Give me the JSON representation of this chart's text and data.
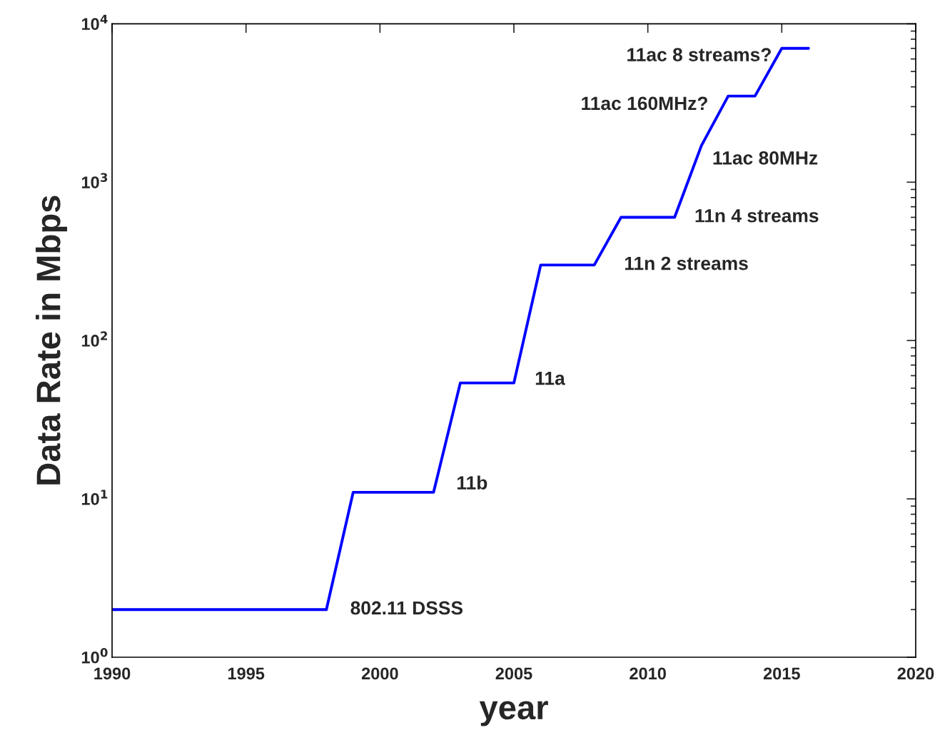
{
  "chart_data": {
    "type": "line",
    "xlabel": "year",
    "ylabel": "Data Rate in Mbps",
    "log": "y",
    "grid": false,
    "marker": "none",
    "line_style": "solid",
    "x": [
      1990,
      1998,
      1999,
      2002,
      2003,
      2005,
      2006,
      2008,
      2009,
      2011,
      2012,
      2013,
      2014,
      2015,
      2016
    ],
    "series": [
      {
        "color": "#0000ff",
        "values": [
          2,
          2,
          11,
          11,
          54,
          54,
          300,
          300,
          600,
          600,
          1700,
          3500,
          3500,
          7000,
          7000
        ]
      }
    ],
    "xlim": [
      1990,
      2020
    ],
    "xticks": [
      1990,
      1995,
      2000,
      2005,
      2010,
      2015,
      2020
    ],
    "ylim": [
      1,
      10000
    ],
    "yticks": [
      {
        "value": 1,
        "label": "10$^{0}$"
      },
      {
        "value": 10,
        "label": "10$^{1}$"
      },
      {
        "value": 100,
        "label": "10$^{2}$"
      },
      {
        "value": 1000,
        "label": "10$^{3}$"
      },
      {
        "value": 10000,
        "label": "10$^{4}$"
      }
    ],
    "annotations": [
      {
        "text": "802.11 DSSS",
        "x": 1998,
        "y": 2
      },
      {
        "text": "11b",
        "x": 2002,
        "y": 11
      },
      {
        "text": "11a",
        "x": 2005,
        "y": 54
      },
      {
        "text": "11n 2 streams",
        "x": 2008,
        "y": 300
      },
      {
        "text": "11n 4 streams",
        "x": 2011,
        "y": 600
      },
      {
        "text": "11ac 80MHz",
        "x": 2012,
        "y": 1700
      },
      {
        "text": "11ac 160MHz?",
        "x": 2013,
        "y": 3500
      },
      {
        "text": "11ac 8 streams?",
        "x": 2015,
        "y": 7000
      }
    ]
  }
}
